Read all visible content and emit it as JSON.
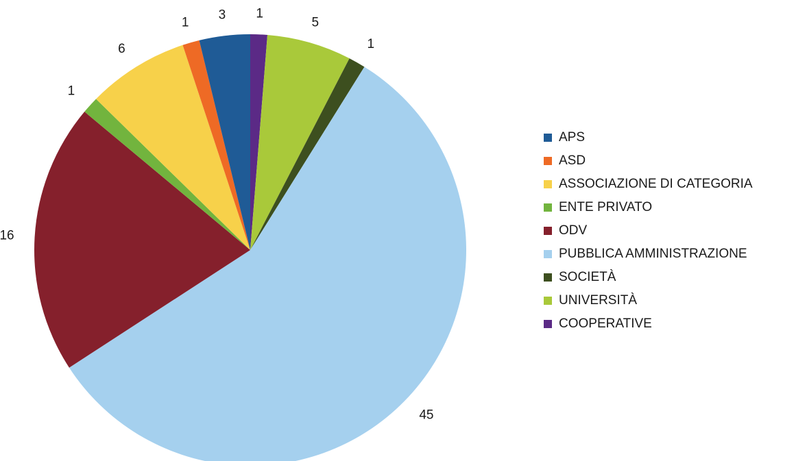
{
  "chart_data": {
    "type": "pie",
    "title": "",
    "legend_position": "right",
    "slices": [
      {
        "label": "COOPERATIVE",
        "value": 1,
        "color": "#5b2a86"
      },
      {
        "label": "UNIVERSITÀ",
        "value": 5,
        "color": "#a9c93a"
      },
      {
        "label": "SOCIETÀ",
        "value": 1,
        "color": "#3d4f1f"
      },
      {
        "label": "PUBBLICA AMMINISTRAZIONE",
        "value": 45,
        "color": "#a5d0ee"
      },
      {
        "label": "ODV",
        "value": 16,
        "color": "#85202c"
      },
      {
        "label": "ENTE PRIVATO",
        "value": 1,
        "color": "#72b43e"
      },
      {
        "label": "ASSOCIAZIONE DI CATEGORIA",
        "value": 6,
        "color": "#f7d14a"
      },
      {
        "label": "ASD",
        "value": 1,
        "color": "#ee6a25"
      },
      {
        "label": "APS",
        "value": 3,
        "color": "#1f5b96"
      }
    ],
    "legend": [
      {
        "label": "APS",
        "color": "#1f5b96"
      },
      {
        "label": "ASD",
        "color": "#ee6a25"
      },
      {
        "label": "ASSOCIAZIONE DI CATEGORIA",
        "color": "#f7d14a"
      },
      {
        "label": "ENTE PRIVATO",
        "color": "#72b43e"
      },
      {
        "label": "ODV",
        "color": "#85202c"
      },
      {
        "label": "PUBBLICA AMMINISTRAZIONE",
        "color": "#a5d0ee"
      },
      {
        "label": "SOCIETÀ",
        "color": "#3d4f1f"
      },
      {
        "label": "UNIVERSITÀ",
        "color": "#a9c93a"
      },
      {
        "label": "COOPERATIVE",
        "color": "#5b2a86"
      }
    ]
  }
}
